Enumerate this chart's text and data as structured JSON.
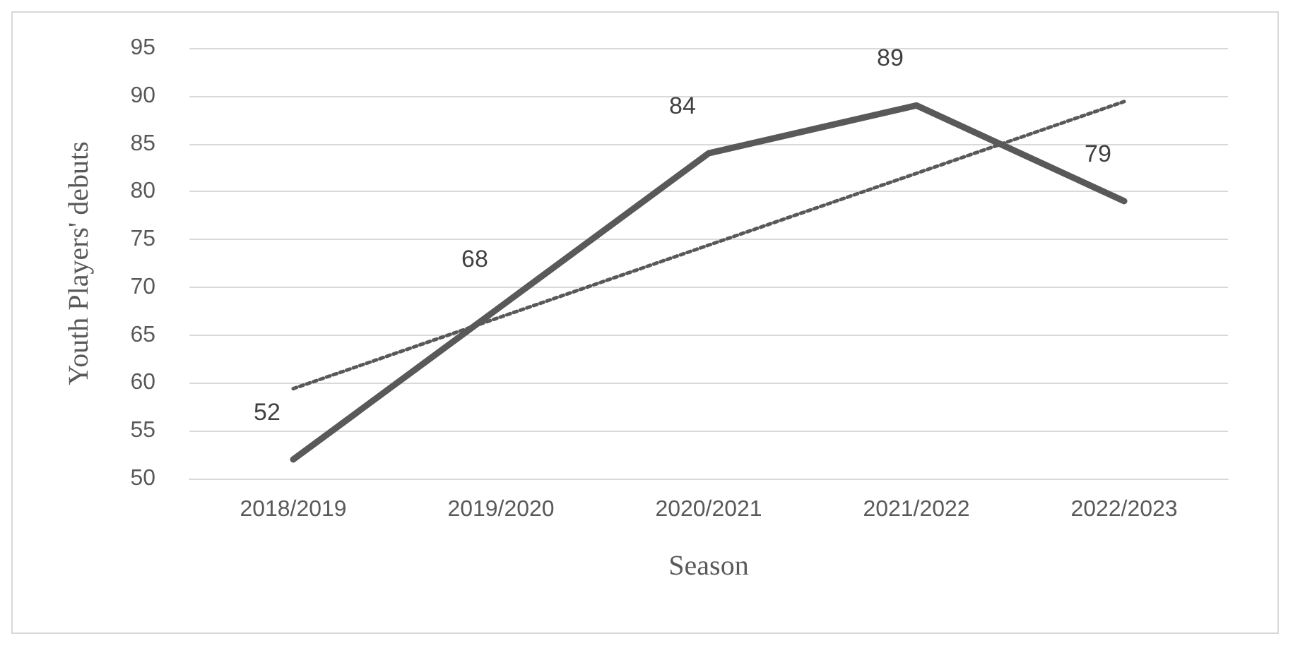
{
  "chart_data": {
    "type": "line",
    "xlabel": "Season",
    "ylabel": "Youth Players' debuts",
    "categories": [
      "2018/2019",
      "2019/2020",
      "2020/2021",
      "2021/2022",
      "2022/2023"
    ],
    "series": [
      {
        "color": "#595959",
        "values": [
          52,
          68,
          84,
          89,
          79
        ],
        "value_labels": [
          "52",
          "68",
          "84",
          "89",
          "79"
        ],
        "line_style": "solid"
      },
      {
        "type": "line",
        "color": "#595959",
        "values": [
          59.4,
          66.9,
          74.4,
          81.9,
          89.4
        ],
        "line_style": "dotted"
      }
    ],
    "ylim": [
      50,
      95
    ],
    "yticks": [
      50,
      55,
      60,
      65,
      70,
      75,
      80,
      85,
      90,
      95
    ],
    "grid": "y",
    "marker": "none"
  }
}
